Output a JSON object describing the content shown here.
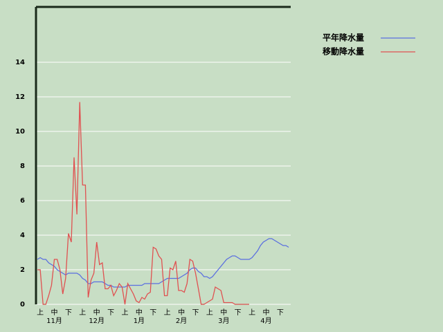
{
  "chart_data": {
    "type": "line",
    "categories": [
      null,
      "上",
      null,
      null,
      null,
      null,
      "中",
      null,
      null,
      null,
      null,
      "下",
      null,
      null,
      null,
      null,
      "上",
      null,
      null,
      null,
      null,
      "中",
      null,
      null,
      null,
      null,
      "下",
      null,
      null,
      null,
      null,
      "上",
      null,
      null,
      null,
      null,
      "中",
      null,
      null,
      null,
      null,
      "下",
      null,
      null,
      null,
      null,
      "上",
      null,
      null,
      null,
      null,
      "中",
      null,
      null,
      null,
      null,
      "下",
      null,
      null,
      null,
      null,
      "上",
      null,
      null,
      null,
      null,
      "中",
      null,
      null,
      null,
      null,
      "下",
      null,
      null,
      null,
      null,
      "上",
      null,
      null,
      null,
      null,
      "中",
      null,
      null,
      null,
      null,
      "下",
      null,
      null,
      null
    ],
    "months": [
      "11月",
      "12月",
      "1月",
      "2月",
      "3月",
      "4月"
    ],
    "series": [
      {
        "name": "平年降水量",
        "color": "#5a6ee0",
        "values": [
          2.6,
          2.7,
          2.6,
          2.6,
          2.4,
          2.3,
          2.2,
          2.0,
          1.9,
          1.8,
          1.7,
          1.8,
          1.8,
          1.8,
          1.8,
          1.7,
          1.5,
          1.4,
          1.2,
          1.2,
          1.3,
          1.3,
          1.3,
          1.3,
          1.2,
          1.1,
          1.1,
          1.0,
          1.0,
          1.0,
          1.0,
          1.0,
          1.1,
          1.1,
          1.1,
          1.1,
          1.1,
          1.1,
          1.2,
          1.2,
          1.2,
          1.2,
          1.2,
          1.2,
          1.3,
          1.4,
          1.5,
          1.5,
          1.5,
          1.5,
          1.5,
          1.6,
          1.7,
          1.8,
          2.0,
          2.1,
          2.1,
          1.9,
          1.8,
          1.6,
          1.6,
          1.5,
          1.6,
          1.8,
          2.0,
          2.2,
          2.4,
          2.6,
          2.7,
          2.8,
          2.8,
          2.7,
          2.6,
          2.6,
          2.6,
          2.6,
          2.7,
          2.9,
          3.1,
          3.4,
          3.6,
          3.7,
          3.8,
          3.8,
          3.7,
          3.6,
          3.5,
          3.4,
          3.4,
          3.3
        ]
      },
      {
        "name": "移動降水量",
        "color": "#e05050",
        "values": [
          2.0,
          2.0,
          0.0,
          0.0,
          0.5,
          1.1,
          2.6,
          2.6,
          2.0,
          0.6,
          1.5,
          4.1,
          3.6,
          8.5,
          5.2,
          11.7,
          6.9,
          6.9,
          0.4,
          1.4,
          1.8,
          3.6,
          2.3,
          2.4,
          0.9,
          0.9,
          1.1,
          0.5,
          0.8,
          1.2,
          1.0,
          0.0,
          1.2,
          0.9,
          0.6,
          0.2,
          0.1,
          0.4,
          0.3,
          0.6,
          0.7,
          3.3,
          3.2,
          2.8,
          2.6,
          0.5,
          0.5,
          2.1,
          2.0,
          2.5,
          0.8,
          0.8,
          0.7,
          1.2,
          2.6,
          2.5,
          1.8,
          0.9,
          0.0,
          0.0,
          0.1,
          0.2,
          0.3,
          1.0,
          0.9,
          0.8,
          0.1,
          0.1,
          0.1,
          0.1,
          0.0,
          0.0,
          0.0,
          0.0,
          0.0,
          0.0,
          null,
          null,
          null,
          null,
          null,
          null,
          null,
          null,
          null,
          null,
          null,
          null,
          null,
          null
        ]
      }
    ],
    "ylim": [
      0,
      17.2
    ],
    "yticks": [
      0,
      2,
      4,
      6,
      8,
      10,
      12,
      14
    ],
    "grid": true
  }
}
